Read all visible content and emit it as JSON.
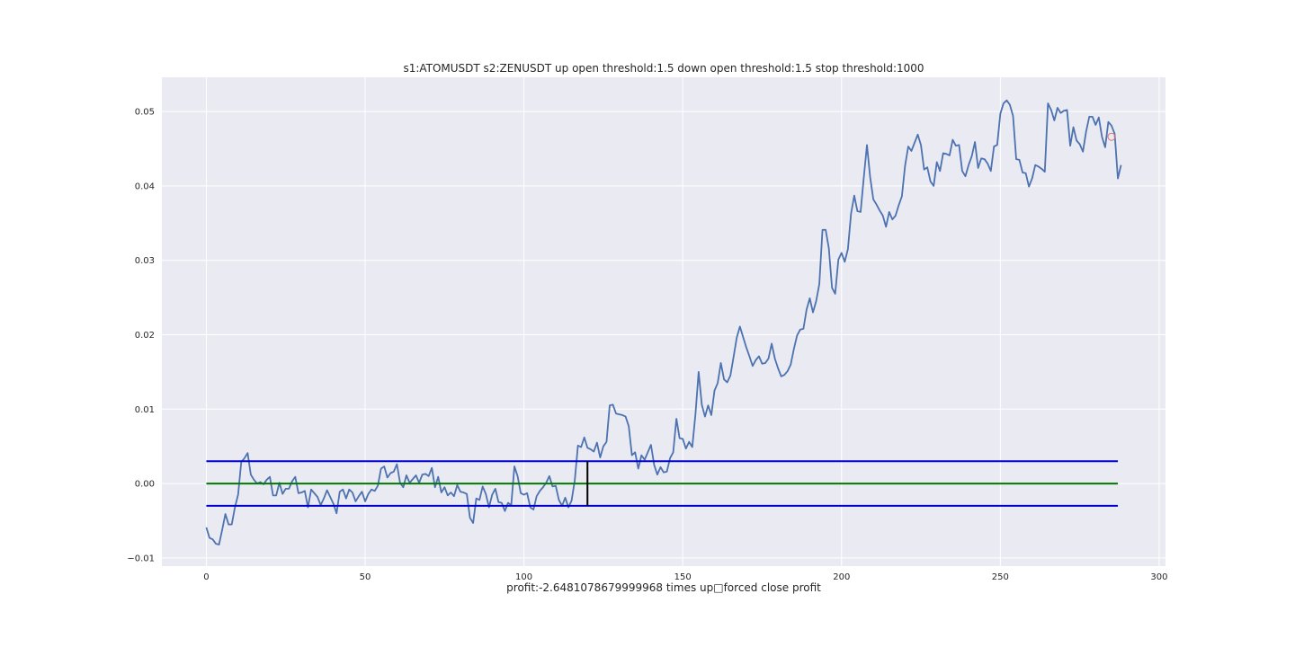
{
  "chart_data": {
    "type": "line",
    "title": "s1:ATOMUSDT s2:ZENUSDT up open threshold:1.5 down open threshold:1.5 stop threshold:1000",
    "xlabel": "profit:-2.6481078679999968 times up□forced close profit",
    "ylabel": "",
    "xlim": [
      -14,
      302
    ],
    "ylim": [
      -0.0111,
      0.0546
    ],
    "grid": true,
    "x_ticks": [
      0,
      50,
      100,
      150,
      200,
      250,
      300
    ],
    "x_tick_labels": [
      "0",
      "50",
      "100",
      "150",
      "200",
      "250",
      "300"
    ],
    "y_ticks": [
      -0.01,
      0.0,
      0.01,
      0.02,
      0.03,
      0.04,
      0.05
    ],
    "y_tick_labels": [
      "−0.01",
      "0.00",
      "0.01",
      "0.02",
      "0.03",
      "0.04",
      "0.05"
    ],
    "colors": {
      "spread": "#4c72b0",
      "bands": "#0000cc",
      "mean": "#007a00",
      "trade_marker": "#000000",
      "close_marker": "#e07070",
      "plot_bg": "#eaeaf2"
    },
    "series": [
      {
        "role": "spread",
        "x_start": 0,
        "values": [
          -0.0059,
          -0.0073,
          -0.0075,
          -0.0081,
          -0.0082,
          -0.0062,
          -0.0041,
          -0.0055,
          -0.0055,
          -0.0032,
          -0.0015,
          0.0029,
          0.0034,
          0.0041,
          0.0012,
          0.0005,
          0.0,
          0.0002,
          -0.0001,
          0.0005,
          0.0009,
          -0.0016,
          -0.0016,
          0.0001,
          -0.0014,
          -0.0007,
          -0.0007,
          0.0003,
          0.0009,
          -0.0013,
          -0.0012,
          -0.001,
          -0.0032,
          -0.0008,
          -0.0013,
          -0.0018,
          -0.0029,
          -0.002,
          -0.0009,
          -0.0018,
          -0.0027,
          -0.004,
          -0.0011,
          -0.0008,
          -0.002,
          -0.0008,
          -0.0012,
          -0.0024,
          -0.0017,
          -0.0011,
          -0.0024,
          -0.0014,
          -0.0008,
          -0.001,
          -0.0003,
          0.002,
          0.0023,
          0.0008,
          0.0014,
          0.0016,
          0.0026,
          0.0001,
          -0.0005,
          0.0011,
          0.0001,
          0.0006,
          0.0011,
          0.0001,
          0.0012,
          0.0013,
          0.001,
          0.0021,
          -0.0005,
          0.0009,
          -0.0012,
          -0.0005,
          -0.0016,
          -0.0012,
          -0.0017,
          -0.0002,
          -0.0011,
          -0.0012,
          -0.0014,
          -0.0046,
          -0.0053,
          -0.002,
          -0.0022,
          -0.0004,
          -0.0014,
          -0.0032,
          -0.0015,
          -0.0007,
          -0.0025,
          -0.0026,
          -0.0037,
          -0.0026,
          -0.0029,
          0.0023,
          0.001,
          -0.0013,
          -0.0015,
          -0.0013,
          -0.0032,
          -0.0035,
          -0.0017,
          -0.001,
          -0.0005,
          0.0001,
          0.001,
          -0.0004,
          -0.0003,
          -0.0022,
          -0.003,
          -0.0019,
          -0.0032,
          -0.0023,
          0.0004,
          0.0051,
          0.0049,
          0.0062,
          0.0048,
          0.0046,
          0.0043,
          0.0055,
          0.0035,
          0.005,
          0.0056,
          0.0105,
          0.0106,
          0.0094,
          0.0093,
          0.0092,
          0.009,
          0.0077,
          0.0038,
          0.0042,
          0.002,
          0.0038,
          0.0032,
          0.0042,
          0.0052,
          0.0025,
          0.0012,
          0.0022,
          0.0015,
          0.0016,
          0.0034,
          0.0042,
          0.0087,
          0.0061,
          0.006,
          0.0047,
          0.0056,
          0.0049,
          0.0093,
          0.015,
          0.0106,
          0.009,
          0.0105,
          0.0092,
          0.0125,
          0.0135,
          0.0162,
          0.014,
          0.0136,
          0.0145,
          0.017,
          0.0196,
          0.0211,
          0.0197,
          0.0183,
          0.0171,
          0.0158,
          0.0166,
          0.0171,
          0.0161,
          0.0162,
          0.0168,
          0.0188,
          0.0168,
          0.0155,
          0.0144,
          0.0146,
          0.0151,
          0.016,
          0.0181,
          0.0199,
          0.0207,
          0.0208,
          0.0234,
          0.0249,
          0.023,
          0.0245,
          0.0268,
          0.0341,
          0.0341,
          0.0316,
          0.0263,
          0.0255,
          0.0301,
          0.031,
          0.0298,
          0.0315,
          0.0363,
          0.0387,
          0.0366,
          0.0365,
          0.0411,
          0.0455,
          0.0412,
          0.0382,
          0.0375,
          0.0367,
          0.036,
          0.0345,
          0.0365,
          0.0355,
          0.036,
          0.0374,
          0.0386,
          0.0427,
          0.0453,
          0.0447,
          0.0458,
          0.0469,
          0.0455,
          0.0422,
          0.0425,
          0.0406,
          0.04,
          0.0432,
          0.042,
          0.0444,
          0.0443,
          0.0441,
          0.0462,
          0.0454,
          0.0455,
          0.042,
          0.0413,
          0.0428,
          0.044,
          0.0459,
          0.0424,
          0.0437,
          0.0436,
          0.043,
          0.042,
          0.0453,
          0.0455,
          0.0497,
          0.0511,
          0.0515,
          0.0509,
          0.0494,
          0.0436,
          0.0435,
          0.0418,
          0.0417,
          0.0399,
          0.041,
          0.0428,
          0.0426,
          0.0423,
          0.0419,
          0.0511,
          0.0502,
          0.0488,
          0.0505,
          0.0498,
          0.0501,
          0.0502,
          0.0454,
          0.0479,
          0.0461,
          0.0456,
          0.0446,
          0.0473,
          0.0493,
          0.0493,
          0.0482,
          0.0492,
          0.0466,
          0.0452,
          0.0486,
          0.0481,
          0.047,
          0.041,
          0.0428
        ]
      },
      {
        "role": "upper-band",
        "x": [
          0,
          287
        ],
        "y": [
          0.003,
          0.003
        ]
      },
      {
        "role": "mean",
        "x": [
          0,
          287
        ],
        "y": [
          0.0,
          0.0
        ]
      },
      {
        "role": "lower-band",
        "x": [
          0,
          287
        ],
        "y": [
          -0.003,
          -0.003
        ]
      }
    ],
    "markers": [
      {
        "role": "trade-open",
        "type": "vline",
        "x": 120,
        "y": [
          -0.003,
          0.003
        ]
      },
      {
        "role": "forced-close",
        "type": "circle",
        "x": 285,
        "y": 0.0466
      }
    ]
  }
}
